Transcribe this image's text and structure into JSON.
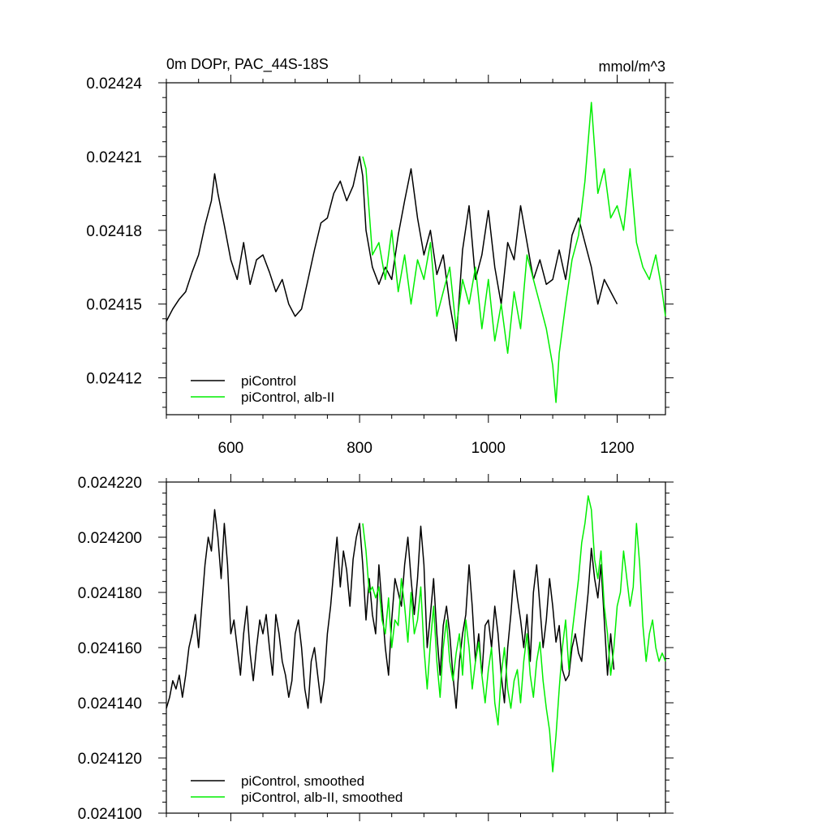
{
  "chart_data": [
    {
      "type": "line",
      "title": "0m DOPr, PAC_44S-18S",
      "units": "mmol/m^3",
      "xlim": [
        500,
        1275
      ],
      "ylim": [
        0.024105,
        0.02424
      ],
      "xticks": [
        600,
        800,
        1000,
        1200
      ],
      "xtick_labels": [
        "600",
        "800",
        "1000",
        "1200"
      ],
      "yticks": [
        0.02412,
        0.02415,
        0.02418,
        0.02421,
        0.02424
      ],
      "ytick_labels": [
        "0.02412",
        "0.02415",
        "0.02418",
        "0.02421",
        "0.02424"
      ],
      "legend": [
        "piControl",
        "piControl, alb-II"
      ],
      "legend_position": "bottom-left",
      "series": [
        {
          "name": "piControl",
          "color": "#000000",
          "x": [
            500,
            510,
            520,
            530,
            540,
            550,
            560,
            570,
            575,
            580,
            590,
            600,
            610,
            620,
            630,
            640,
            650,
            660,
            670,
            680,
            690,
            700,
            710,
            720,
            730,
            740,
            750,
            760,
            770,
            780,
            790,
            800,
            805,
            810,
            820,
            830,
            840,
            850,
            860,
            870,
            880,
            890,
            900,
            910,
            920,
            930,
            940,
            950,
            960,
            970,
            980,
            990,
            1000,
            1010,
            1020,
            1030,
            1040,
            1050,
            1060,
            1070,
            1080,
            1090,
            1100,
            1110,
            1120,
            1130,
            1140,
            1150,
            1160,
            1170,
            1180,
            1190,
            1200
          ],
          "values": [
            0.024143,
            0.024148,
            0.024152,
            0.024155,
            0.024163,
            0.02417,
            0.024182,
            0.024192,
            0.024203,
            0.024195,
            0.024182,
            0.024168,
            0.02416,
            0.024175,
            0.024158,
            0.024168,
            0.02417,
            0.024163,
            0.024155,
            0.02416,
            0.02415,
            0.024145,
            0.024148,
            0.02416,
            0.024172,
            0.024183,
            0.024185,
            0.024195,
            0.0242,
            0.024192,
            0.024198,
            0.02421,
            0.024202,
            0.02418,
            0.024165,
            0.024158,
            0.024165,
            0.02416,
            0.024178,
            0.024192,
            0.024205,
            0.024185,
            0.02417,
            0.02418,
            0.024162,
            0.02417,
            0.02415,
            0.024135,
            0.024172,
            0.02419,
            0.02416,
            0.02417,
            0.024188,
            0.024165,
            0.02415,
            0.024175,
            0.024168,
            0.02419,
            0.024175,
            0.02416,
            0.024168,
            0.024158,
            0.02416,
            0.024172,
            0.02416,
            0.024178,
            0.024185,
            0.024175,
            0.024165,
            0.02415,
            0.02416,
            0.024155,
            0.02415
          ]
        },
        {
          "name": "piControl, alb-II",
          "color": "#00ee00",
          "x": [
            805,
            810,
            820,
            830,
            840,
            850,
            860,
            870,
            880,
            890,
            900,
            910,
            920,
            930,
            940,
            950,
            960,
            970,
            980,
            990,
            1000,
            1010,
            1020,
            1030,
            1040,
            1050,
            1060,
            1070,
            1080,
            1090,
            1100,
            1105,
            1110,
            1120,
            1130,
            1140,
            1150,
            1160,
            1170,
            1180,
            1190,
            1200,
            1210,
            1220,
            1230,
            1240,
            1250,
            1260,
            1270,
            1275
          ],
          "values": [
            0.02421,
            0.024205,
            0.02417,
            0.024175,
            0.02416,
            0.02418,
            0.024155,
            0.02417,
            0.02415,
            0.024168,
            0.02416,
            0.024175,
            0.024145,
            0.024155,
            0.024165,
            0.02414,
            0.02416,
            0.02415,
            0.024165,
            0.02414,
            0.02416,
            0.024135,
            0.02415,
            0.02413,
            0.024155,
            0.02414,
            0.02417,
            0.02416,
            0.02415,
            0.02414,
            0.024125,
            0.02411,
            0.02413,
            0.02415,
            0.024168,
            0.024178,
            0.0242,
            0.024232,
            0.024195,
            0.024205,
            0.024185,
            0.02419,
            0.02418,
            0.024205,
            0.024175,
            0.024165,
            0.02416,
            0.02417,
            0.024155,
            0.024145
          ]
        }
      ]
    },
    {
      "type": "line",
      "title": "",
      "xlim": [
        500,
        1275
      ],
      "ylim": [
        0.0241,
        0.02422
      ],
      "xticks": [
        600,
        800,
        1000,
        1200
      ],
      "xtick_labels": [],
      "yticks": [
        0.0241,
        0.02412,
        0.02414,
        0.02416,
        0.02418,
        0.0242,
        0.02422
      ],
      "ytick_labels": [
        "0.024100",
        "0.024120",
        "0.024140",
        "0.024160",
        "0.024180",
        "0.024200",
        "0.024220"
      ],
      "legend": [
        "piControl, smoothed",
        "piControl, alb-II, smoothed"
      ],
      "legend_position": "bottom-left",
      "series": [
        {
          "name": "piControl, smoothed",
          "color": "#000000",
          "x": [
            500,
            505,
            510,
            515,
            520,
            525,
            530,
            535,
            540,
            545,
            550,
            555,
            560,
            565,
            570,
            575,
            580,
            585,
            590,
            595,
            600,
            605,
            610,
            615,
            620,
            625,
            630,
            635,
            640,
            645,
            650,
            655,
            660,
            665,
            670,
            675,
            680,
            685,
            690,
            695,
            700,
            705,
            710,
            715,
            720,
            725,
            730,
            735,
            740,
            745,
            750,
            755,
            760,
            765,
            770,
            775,
            780,
            785,
            790,
            795,
            800,
            805,
            810,
            815,
            820,
            825,
            830,
            835,
            840,
            845,
            850,
            855,
            860,
            865,
            870,
            875,
            880,
            885,
            890,
            895,
            900,
            905,
            910,
            915,
            920,
            925,
            930,
            935,
            940,
            945,
            950,
            955,
            960,
            965,
            970,
            975,
            980,
            985,
            990,
            995,
            1000,
            1005,
            1010,
            1015,
            1020,
            1025,
            1030,
            1035,
            1040,
            1045,
            1050,
            1055,
            1060,
            1065,
            1070,
            1075,
            1080,
            1085,
            1090,
            1095,
            1100,
            1105,
            1110,
            1115,
            1120,
            1125,
            1130,
            1135,
            1140,
            1145,
            1150,
            1155,
            1160,
            1165,
            1170,
            1175,
            1180,
            1185,
            1190,
            1195
          ],
          "values": [
            0.024138,
            0.024142,
            0.024148,
            0.024145,
            0.02415,
            0.024142,
            0.02415,
            0.02416,
            0.024165,
            0.024172,
            0.02416,
            0.024175,
            0.02419,
            0.0242,
            0.024195,
            0.02421,
            0.0242,
            0.024185,
            0.024205,
            0.02419,
            0.024165,
            0.02417,
            0.02416,
            0.02415,
            0.024165,
            0.024175,
            0.024158,
            0.024148,
            0.02416,
            0.02417,
            0.024165,
            0.024172,
            0.02416,
            0.02415,
            0.024172,
            0.024165,
            0.024155,
            0.02415,
            0.024142,
            0.024148,
            0.024165,
            0.02417,
            0.02416,
            0.024145,
            0.024138,
            0.024155,
            0.02416,
            0.02415,
            0.02414,
            0.024148,
            0.024165,
            0.024175,
            0.024188,
            0.0242,
            0.024182,
            0.024195,
            0.024188,
            0.024175,
            0.024192,
            0.0242,
            0.024205,
            0.02419,
            0.02417,
            0.024185,
            0.024172,
            0.024165,
            0.02419,
            0.024175,
            0.02416,
            0.02415,
            0.02417,
            0.024185,
            0.02418,
            0.024175,
            0.02419,
            0.0242,
            0.024185,
            0.024172,
            0.024185,
            0.024204,
            0.02419,
            0.02416,
            0.024172,
            0.024185,
            0.024165,
            0.02415,
            0.024168,
            0.024175,
            0.024165,
            0.02415,
            0.024138,
            0.024155,
            0.024165,
            0.024172,
            0.02419,
            0.024175,
            0.024155,
            0.024165,
            0.02415,
            0.024168,
            0.02417,
            0.02416,
            0.024175,
            0.024165,
            0.02415,
            0.02414,
            0.02416,
            0.024172,
            0.024188,
            0.024178,
            0.02417,
            0.02416,
            0.024172,
            0.024155,
            0.02418,
            0.02419,
            0.024175,
            0.02416,
            0.02417,
            0.024185,
            0.024175,
            0.024162,
            0.024168,
            0.024152,
            0.024148,
            0.02415,
            0.02416,
            0.024165,
            0.024158,
            0.024155,
            0.024168,
            0.02418,
            0.024196,
            0.024185,
            0.024178,
            0.02419,
            0.02417,
            0.02415,
            0.024165,
            0.024152
          ]
        },
        {
          "name": "piControl, alb-II, smoothed",
          "color": "#00ee00",
          "x": [
            805,
            810,
            815,
            820,
            825,
            830,
            835,
            840,
            845,
            850,
            855,
            860,
            865,
            870,
            875,
            880,
            885,
            890,
            895,
            900,
            905,
            910,
            915,
            920,
            925,
            930,
            935,
            940,
            945,
            950,
            955,
            960,
            965,
            970,
            975,
            980,
            985,
            990,
            995,
            1000,
            1005,
            1010,
            1015,
            1020,
            1025,
            1030,
            1035,
            1040,
            1045,
            1050,
            1055,
            1060,
            1065,
            1070,
            1075,
            1080,
            1085,
            1090,
            1095,
            1100,
            1105,
            1110,
            1115,
            1120,
            1125,
            1130,
            1135,
            1140,
            1145,
            1150,
            1155,
            1160,
            1165,
            1170,
            1175,
            1180,
            1185,
            1190,
            1195,
            1200,
            1205,
            1210,
            1215,
            1220,
            1225,
            1230,
            1235,
            1240,
            1245,
            1250,
            1255,
            1260,
            1265,
            1270,
            1275
          ],
          "values": [
            0.024205,
            0.024195,
            0.02418,
            0.024182,
            0.024178,
            0.024182,
            0.02417,
            0.024165,
            0.024178,
            0.02416,
            0.02417,
            0.024168,
            0.024185,
            0.024175,
            0.024162,
            0.02418,
            0.024165,
            0.02417,
            0.024182,
            0.02416,
            0.024145,
            0.024162,
            0.024175,
            0.024155,
            0.024142,
            0.02416,
            0.02417,
            0.024155,
            0.024148,
            0.024158,
            0.024165,
            0.02415,
            0.02417,
            0.02416,
            0.024145,
            0.024155,
            0.024162,
            0.02415,
            0.02414,
            0.024152,
            0.02416,
            0.02414,
            0.024132,
            0.02415,
            0.02416,
            0.024145,
            0.024138,
            0.024148,
            0.024152,
            0.02414,
            0.024155,
            0.024165,
            0.02415,
            0.024142,
            0.024155,
            0.024162,
            0.024148,
            0.024138,
            0.02413,
            0.024115,
            0.024128,
            0.024145,
            0.02416,
            0.02417,
            0.024152,
            0.024165,
            0.024175,
            0.024185,
            0.024198,
            0.024205,
            0.024215,
            0.02421,
            0.024192,
            0.024185,
            0.024195,
            0.024175,
            0.024165,
            0.02415,
            0.02416,
            0.024175,
            0.02418,
            0.024195,
            0.024185,
            0.024175,
            0.024182,
            0.024205,
            0.02419,
            0.024168,
            0.024155,
            0.024165,
            0.02417,
            0.02416,
            0.024155,
            0.024158,
            0.024155
          ]
        }
      ]
    }
  ]
}
